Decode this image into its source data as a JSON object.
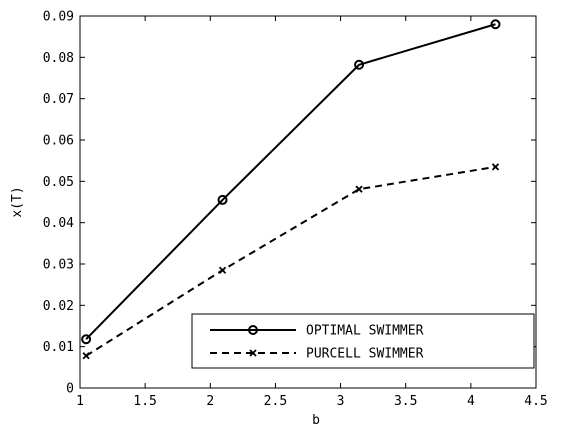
{
  "chart_data": {
    "type": "line",
    "xlabel": "b",
    "ylabel": "x(T)",
    "xlim": [
      1,
      4.5
    ],
    "ylim": [
      0,
      0.09
    ],
    "xticks": [
      1,
      1.5,
      2,
      2.5,
      3,
      3.5,
      4,
      4.5
    ],
    "yticks": [
      0,
      0.01,
      0.02,
      0.03,
      0.04,
      0.05,
      0.06,
      0.07,
      0.08,
      0.09
    ],
    "xtick_labels": [
      "1",
      "1.5",
      "2",
      "2.5",
      "3",
      "3.5",
      "4",
      "4.5"
    ],
    "ytick_labels": [
      "0",
      "0.01",
      "0.02",
      "0.03",
      "0.04",
      "0.05",
      "0.06",
      "0.07",
      "0.08",
      "0.09"
    ],
    "grid": false,
    "legend_position": "bottom-right",
    "series": [
      {
        "name": "OPTIMAL SWIMMER",
        "line_style": "solid",
        "marker": "circle",
        "color": "#000000",
        "x": [
          1.047,
          2.094,
          3.142,
          4.189
        ],
        "y": [
          0.0118,
          0.0455,
          0.0782,
          0.088
        ]
      },
      {
        "name": "PURCELL SWIMMER",
        "line_style": "dashed",
        "marker": "x",
        "color": "#000000",
        "x": [
          1.047,
          2.094,
          3.142,
          4.189
        ],
        "y": [
          0.0078,
          0.0285,
          0.0481,
          0.0535
        ]
      }
    ]
  }
}
